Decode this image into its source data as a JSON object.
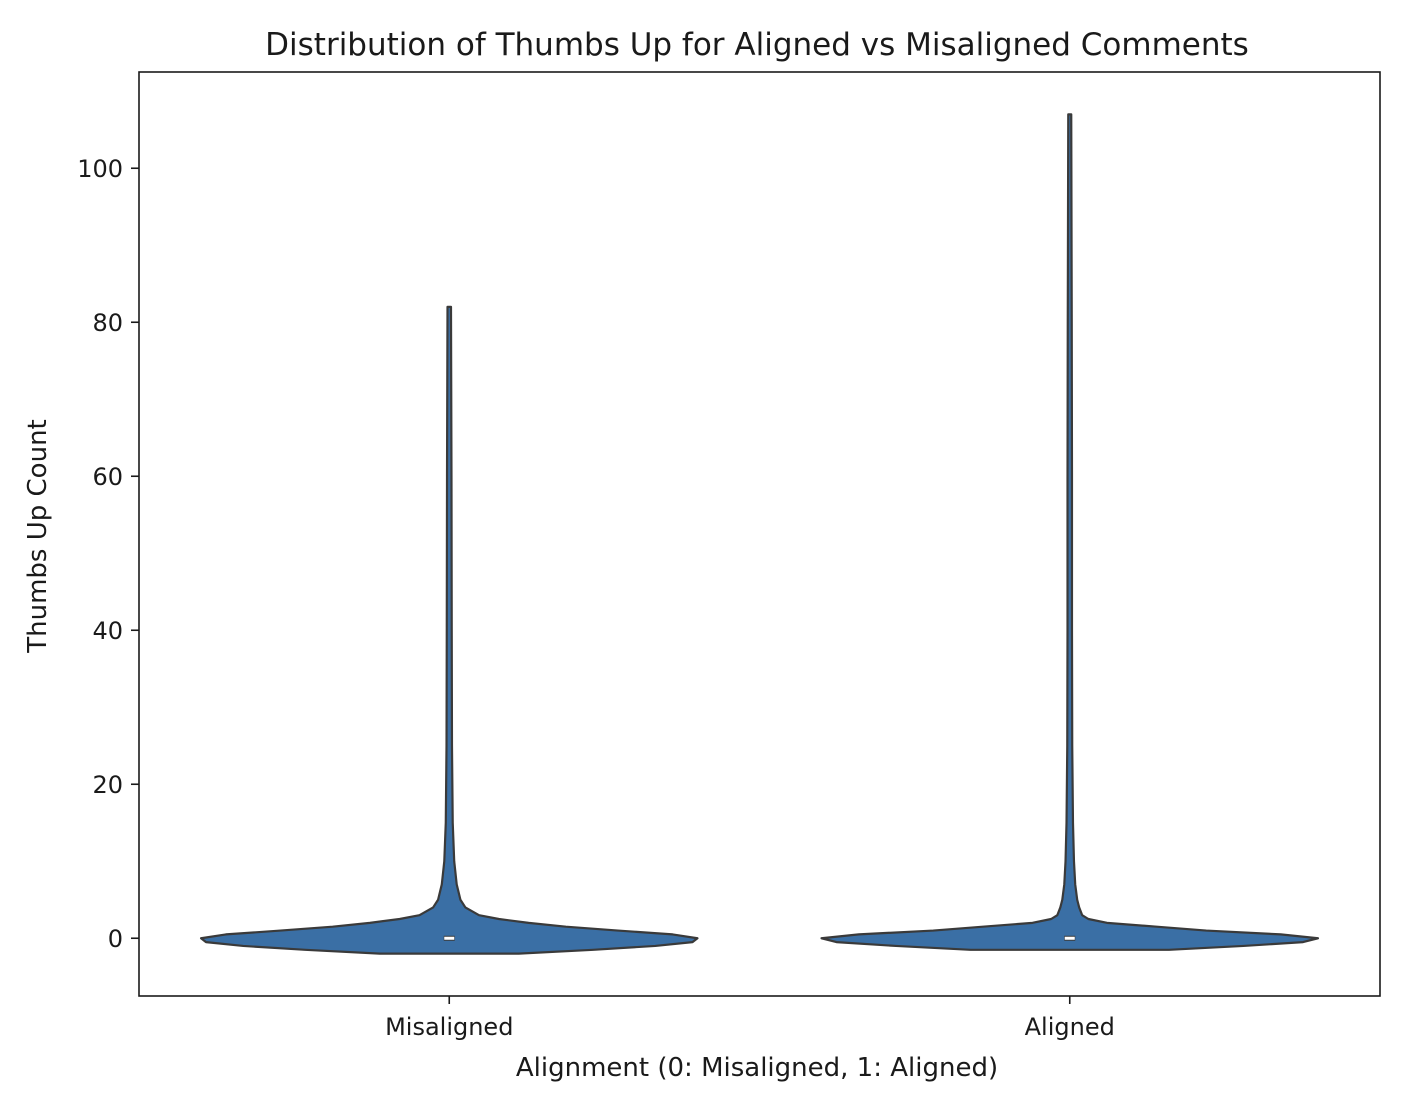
{
  "chart_data": {
    "type": "violin",
    "title": "Distribution of Thumbs Up for Aligned vs Misaligned Comments",
    "xlabel": "Alignment (0: Misaligned, 1: Aligned)",
    "ylabel": "Thumbs Up Count",
    "categories": [
      "Misaligned",
      "Aligned"
    ],
    "ylim": [
      -7.5,
      112.5
    ],
    "yticks": [
      0,
      20,
      40,
      60,
      80,
      100
    ],
    "ytick_labels": [
      "0",
      "20",
      "40",
      "60",
      "80",
      "100"
    ],
    "grid": false,
    "color": "#3a6fa5",
    "outline_color": "#3a3a3a",
    "series": [
      {
        "category": "Misaligned",
        "min": -2,
        "max": 82,
        "median": 0,
        "q1": 0,
        "q3": 0,
        "density": [
          [
            -2.0,
            0.28
          ],
          [
            -1.5,
            0.58
          ],
          [
            -1.0,
            0.83
          ],
          [
            -0.5,
            0.98
          ],
          [
            0.0,
            1.0
          ],
          [
            0.5,
            0.9
          ],
          [
            1.0,
            0.68
          ],
          [
            1.5,
            0.47
          ],
          [
            2.0,
            0.32
          ],
          [
            2.5,
            0.2
          ],
          [
            3.0,
            0.12
          ],
          [
            4.0,
            0.065
          ],
          [
            5.0,
            0.045
          ],
          [
            7.0,
            0.03
          ],
          [
            10.0,
            0.02
          ],
          [
            15.0,
            0.014
          ],
          [
            25.0,
            0.011
          ],
          [
            40.0,
            0.01
          ],
          [
            60.0,
            0.009
          ],
          [
            82.0,
            0.007
          ]
        ]
      },
      {
        "category": "Aligned",
        "min": -1.5,
        "max": 107,
        "median": 0,
        "q1": 0,
        "q3": 0,
        "density": [
          [
            -1.5,
            0.4
          ],
          [
            -1.0,
            0.7
          ],
          [
            -0.5,
            0.94
          ],
          [
            0.0,
            1.0
          ],
          [
            0.5,
            0.85
          ],
          [
            1.0,
            0.55
          ],
          [
            1.5,
            0.35
          ],
          [
            2.0,
            0.15
          ],
          [
            2.5,
            0.075
          ],
          [
            3.0,
            0.05
          ],
          [
            4.0,
            0.038
          ],
          [
            5.0,
            0.03
          ],
          [
            7.0,
            0.022
          ],
          [
            10.0,
            0.017
          ],
          [
            15.0,
            0.013
          ],
          [
            25.0,
            0.01
          ],
          [
            40.0,
            0.009
          ],
          [
            60.0,
            0.009
          ],
          [
            80.0,
            0.008
          ],
          [
            107.0,
            0.006
          ]
        ]
      }
    ]
  }
}
